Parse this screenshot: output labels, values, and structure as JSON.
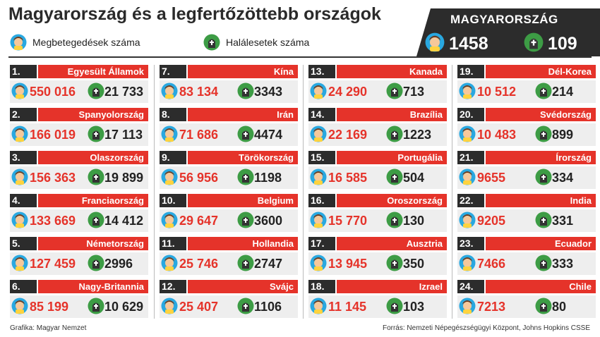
{
  "title": "Magyarország és a legfertőzöttebb országok",
  "legend": {
    "cases_label": "Megbetegedések száma",
    "deaths_label": "Halálesetek száma"
  },
  "hungary": {
    "label": "MAGYARORSZÁG",
    "cases": "1458",
    "deaths": "109"
  },
  "footer": {
    "graphic": "Grafika: Magyar Nemzet",
    "source": "Forrás: Nemzeti Népegészségügyi Központ, Johns Hopkins CSSE"
  },
  "colors": {
    "accent_red": "#e5332a",
    "dark": "#2c2c2c",
    "face_blue": "#29a8e0",
    "face_yellow": "#ffd33f",
    "grave_green": "#3d9c45"
  },
  "chart_data": {
    "type": "table",
    "title": "Magyarország és a legfertőzöttebb országok",
    "columns": [
      "Megbetegedések száma",
      "Halálesetek száma"
    ],
    "rows": [
      {
        "rank": "1.",
        "country": "Egyesült Államok",
        "cases": "550 016",
        "deaths": "21 733"
      },
      {
        "rank": "2.",
        "country": "Spanyolország",
        "cases": "166 019",
        "deaths": "17 113"
      },
      {
        "rank": "3.",
        "country": "Olaszország",
        "cases": "156 363",
        "deaths": "19 899"
      },
      {
        "rank": "4.",
        "country": "Franciaország",
        "cases": "133 669",
        "deaths": "14 412"
      },
      {
        "rank": "5.",
        "country": "Németország",
        "cases": "127 459",
        "deaths": "2996"
      },
      {
        "rank": "6.",
        "country": "Nagy-Britannia",
        "cases": "85 199",
        "deaths": "10 629"
      },
      {
        "rank": "7.",
        "country": "Kína",
        "cases": "83 134",
        "deaths": "3343"
      },
      {
        "rank": "8.",
        "country": "Irán",
        "cases": "71 686",
        "deaths": "4474"
      },
      {
        "rank": "9.",
        "country": "Törökország",
        "cases": "56 956",
        "deaths": "1198"
      },
      {
        "rank": "10.",
        "country": "Belgium",
        "cases": "29 647",
        "deaths": "3600"
      },
      {
        "rank": "11.",
        "country": "Hollandia",
        "cases": "25 746",
        "deaths": "2747"
      },
      {
        "rank": "12.",
        "country": "Svájc",
        "cases": "25 407",
        "deaths": "1106"
      },
      {
        "rank": "13.",
        "country": "Kanada",
        "cases": "24 290",
        "deaths": "713"
      },
      {
        "rank": "14.",
        "country": "Brazília",
        "cases": "22 169",
        "deaths": "1223"
      },
      {
        "rank": "15.",
        "country": "Portugália",
        "cases": "16 585",
        "deaths": "504"
      },
      {
        "rank": "16.",
        "country": "Oroszország",
        "cases": "15 770",
        "deaths": "130"
      },
      {
        "rank": "17.",
        "country": "Ausztria",
        "cases": "13 945",
        "deaths": "350"
      },
      {
        "rank": "18.",
        "country": "Izrael",
        "cases": "11 145",
        "deaths": "103"
      },
      {
        "rank": "19.",
        "country": "Dél-Korea",
        "cases": "10 512",
        "deaths": "214"
      },
      {
        "rank": "20.",
        "country": "Svédország",
        "cases": "10 483",
        "deaths": "899"
      },
      {
        "rank": "21.",
        "country": "Írország",
        "cases": "9655",
        "deaths": "334"
      },
      {
        "rank": "22.",
        "country": "India",
        "cases": "9205",
        "deaths": "331"
      },
      {
        "rank": "23.",
        "country": "Ecuador",
        "cases": "7466",
        "deaths": "333"
      },
      {
        "rank": "24.",
        "country": "Chile",
        "cases": "7213",
        "deaths": "80"
      }
    ]
  }
}
